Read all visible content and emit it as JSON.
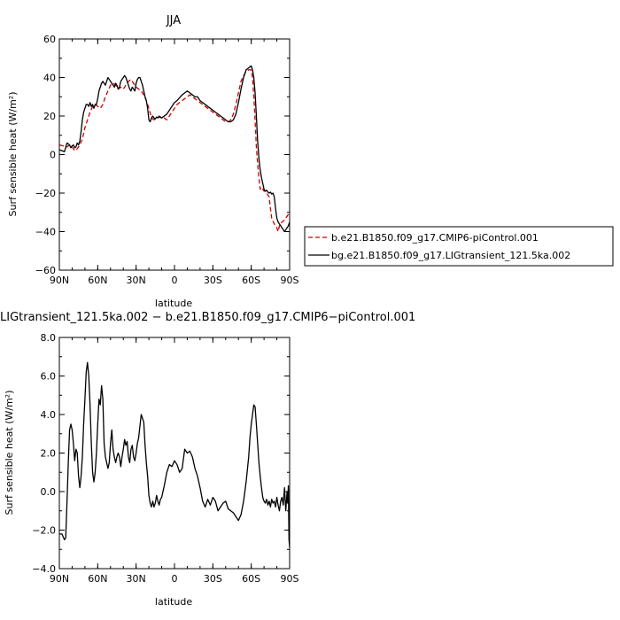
{
  "chart_data": [
    {
      "type": "line",
      "title": "JJA",
      "xlabel": "latitude",
      "ylabel": "Surf sensible heat (W/m²)",
      "x_dir": "90N to 90S",
      "xlim": [
        90,
        -90
      ],
      "ylim": [
        -60,
        60
      ],
      "x_ticks": [
        90,
        60,
        30,
        0,
        -30,
        -60,
        -90
      ],
      "x_tick_labels": [
        "90N",
        "60N",
        "30N",
        "0",
        "30S",
        "60S",
        "90S"
      ],
      "y_ticks": [
        -60,
        -40,
        -20,
        0,
        20,
        40,
        60
      ],
      "y_tick_labels": [
        "−60",
        "−40",
        "−20",
        "0",
        "20",
        "40",
        "60"
      ],
      "legend_position": "right-bottom-outside",
      "series": [
        {
          "name": "b.e21.B1850.f09_g17.CMIP6-piControl.001",
          "color": "#cc0000",
          "dash": "dashed",
          "x": [
            90,
            87,
            84,
            83,
            81,
            80,
            78,
            76,
            74,
            72,
            70,
            68,
            66,
            64,
            62,
            60,
            58,
            56,
            54,
            52,
            50,
            48,
            46,
            44,
            42,
            40,
            38,
            36,
            34,
            32,
            30,
            28,
            26,
            24,
            22,
            20,
            18,
            16,
            14,
            12,
            10,
            8,
            6,
            4,
            2,
            0,
            -2,
            -4,
            -6,
            -8,
            -10,
            -12,
            -14,
            -16,
            -18,
            -20,
            -22,
            -24,
            -26,
            -28,
            -30,
            -32,
            -34,
            -36,
            -38,
            -40,
            -42,
            -44,
            -46,
            -48,
            -50,
            -52,
            -54,
            -56,
            -58,
            -60,
            -61,
            -62,
            -63,
            -64,
            -65,
            -66,
            -67,
            -68,
            -69,
            -70,
            -71,
            -72,
            -73,
            -74,
            -75,
            -76,
            -78,
            -80,
            -81,
            -82,
            -84,
            -86,
            -88,
            -90
          ],
          "y": [
            5,
            4.5,
            4,
            4.5,
            5,
            4,
            2,
            3,
            5,
            8,
            14,
            18,
            22,
            25,
            26,
            25,
            24,
            26,
            30,
            33,
            36,
            37,
            36,
            34,
            35,
            34,
            36,
            38,
            39,
            37,
            35,
            34,
            33,
            31,
            28,
            24,
            19,
            18,
            19,
            19.5,
            19,
            19,
            18,
            20,
            22,
            24,
            26,
            27,
            28,
            29,
            30,
            31,
            30,
            29,
            28,
            27,
            26,
            25,
            24,
            23,
            22,
            21,
            20,
            19,
            18,
            17,
            17,
            18,
            21,
            26,
            32,
            38,
            41,
            43,
            44,
            44,
            40,
            30,
            18,
            4,
            -5,
            -12,
            -18,
            -17,
            -18,
            -19,
            -19,
            -20,
            -21,
            -22,
            -28,
            -33,
            -36,
            -38,
            -40,
            -37,
            -35,
            -34,
            -32,
            -30
          ]
        },
        {
          "name": "bg.e21.B1850.f09_g17.LIGtransient_121.5ka.002",
          "color": "#000000",
          "dash": "solid",
          "x": [
            90,
            88,
            86,
            84,
            83,
            82,
            81,
            80,
            79,
            78,
            77,
            76,
            75,
            74,
            73,
            72,
            71,
            70,
            69,
            68,
            67,
            66,
            65,
            64,
            63,
            62,
            61,
            60,
            59,
            58,
            57,
            56,
            55,
            54,
            53,
            52,
            51,
            50,
            49,
            48,
            47,
            46,
            45,
            44,
            43,
            42,
            41,
            40,
            39,
            38,
            37,
            36,
            35,
            34,
            33,
            32,
            31,
            30,
            29,
            28,
            27,
            26,
            25,
            24,
            23,
            22,
            21,
            20,
            19,
            18,
            17,
            16,
            15,
            14,
            13,
            12,
            10,
            8,
            6,
            4,
            2,
            0,
            -2,
            -4,
            -6,
            -8,
            -10,
            -12,
            -14,
            -16,
            -18,
            -20,
            -22,
            -24,
            -26,
            -28,
            -30,
            -32,
            -34,
            -36,
            -38,
            -40,
            -42,
            -44,
            -46,
            -48,
            -50,
            -52,
            -54,
            -56,
            -58,
            -60,
            -61,
            -62,
            -63,
            -64,
            -65,
            -66,
            -67,
            -68,
            -69,
            -70,
            -71,
            -72,
            -73,
            -74,
            -75,
            -76,
            -77,
            -78,
            -79,
            -80,
            -81,
            -82,
            -83,
            -84,
            -85,
            -86,
            -87,
            -88,
            -89,
            -90
          ],
          "y": [
            2.5,
            2,
            1.5,
            6,
            5.5,
            5,
            3.5,
            4.5,
            5,
            3.5,
            4,
            6,
            5,
            7,
            12,
            18,
            22,
            24,
            26,
            26,
            25,
            27,
            25,
            26,
            24,
            26,
            26,
            29,
            33,
            35,
            37,
            38,
            37,
            36,
            38,
            40,
            39,
            38,
            37,
            36,
            35,
            37,
            36,
            34,
            35,
            38,
            39,
            40,
            41,
            40,
            38,
            36,
            34,
            33,
            35,
            34,
            33,
            37,
            39,
            40,
            40,
            38,
            36,
            33,
            30,
            28,
            24,
            18,
            17,
            19,
            20,
            19,
            18.5,
            19.5,
            19,
            20,
            19,
            20,
            21,
            23,
            25,
            27,
            28,
            29.5,
            31,
            32,
            33,
            32,
            31,
            30,
            30,
            28,
            27,
            26,
            25,
            24,
            23,
            22,
            21,
            20,
            19,
            18,
            17,
            17,
            18,
            21,
            27,
            34,
            40,
            44,
            45,
            46,
            44,
            40,
            32,
            20,
            7,
            -2,
            -8,
            -12,
            -15,
            -18,
            -19,
            -18.5,
            -19.5,
            -20,
            -19.5,
            -20.5,
            -20,
            -22,
            -28,
            -33,
            -35,
            -36,
            -37,
            -38,
            -39,
            -40,
            -39,
            -38,
            -37,
            -35
          ]
        }
      ]
    },
    {
      "type": "line",
      "title": "LIGtransient_121.5ka.002 − b.e21.B1850.f09_g17.CMIP6−piControl.001",
      "xlabel": "latitude",
      "ylabel": "Surf sensible heat (W/m²)",
      "x_dir": "90N to 90S",
      "xlim": [
        90,
        -90
      ],
      "ylim": [
        -4,
        8
      ],
      "x_ticks": [
        90,
        60,
        30,
        0,
        -30,
        -60,
        -90
      ],
      "x_tick_labels": [
        "90N",
        "60N",
        "30N",
        "0",
        "30S",
        "60S",
        "90S"
      ],
      "y_ticks": [
        -4,
        -2,
        0,
        2,
        4,
        6,
        8
      ],
      "y_tick_labels": [
        "−4.0",
        "−2.0",
        "0.0",
        "2.0",
        "4.0",
        "6.0",
        "8.0"
      ],
      "series": [
        {
          "color": "#000000",
          "dash": "solid",
          "x": [
            90,
            88,
            86,
            85,
            84,
            83,
            82,
            81,
            80,
            79,
            78,
            77,
            76,
            75,
            74,
            73,
            72,
            71,
            70,
            69,
            68,
            67,
            66,
            65,
            64,
            63,
            62,
            61,
            60,
            59,
            58,
            57,
            56,
            55,
            54,
            53,
            52,
            51,
            50,
            49,
            48,
            47,
            46,
            45,
            44,
            43,
            42,
            41,
            40,
            39,
            38,
            37,
            36,
            35,
            34,
            33,
            32,
            31,
            30,
            29,
            28,
            27,
            26,
            25,
            24,
            23,
            22,
            21,
            20,
            19,
            18,
            17,
            16,
            15,
            14,
            13,
            12,
            11,
            10,
            9,
            8,
            6,
            4,
            2,
            0,
            -2,
            -4,
            -6,
            -8,
            -10,
            -12,
            -14,
            -16,
            -18,
            -20,
            -22,
            -24,
            -26,
            -28,
            -30,
            -32,
            -34,
            -36,
            -38,
            -40,
            -42,
            -44,
            -46,
            -48,
            -50,
            -52,
            -54,
            -56,
            -58,
            -59,
            -60,
            -61,
            -62,
            -63,
            -64,
            -65,
            -66,
            -67,
            -68,
            -69,
            -70,
            -71,
            -72,
            -73,
            -74,
            -75,
            -76,
            -77,
            -78,
            -79,
            -80,
            -81,
            -82,
            -83,
            -84,
            -85,
            -86,
            -87,
            -88,
            -88.5,
            -89,
            -89.5,
            -90
          ],
          "y": [
            -2.2,
            -2.2,
            -2.5,
            -2.4,
            -0.5,
            1.5,
            3.2,
            3.5,
            3.2,
            2.5,
            1.6,
            2.2,
            2.0,
            0.8,
            0.2,
            0.8,
            1.8,
            3.5,
            4.8,
            6.2,
            6.7,
            6.0,
            4.5,
            2.5,
            1.0,
            0.5,
            1.0,
            2.0,
            3.5,
            4.8,
            4.5,
            5.5,
            4.8,
            2.5,
            1.8,
            1.5,
            1.2,
            1.5,
            2.5,
            3.2,
            2.2,
            1.8,
            1.5,
            1.8,
            2.0,
            1.8,
            1.3,
            1.8,
            2.2,
            2.7,
            2.4,
            2.6,
            1.8,
            1.5,
            2.2,
            2.4,
            1.8,
            1.6,
            2.0,
            2.5,
            2.8,
            3.4,
            4.0,
            3.8,
            3.6,
            2.4,
            1.5,
            0.8,
            -0.2,
            -0.6,
            -0.8,
            -0.5,
            -0.8,
            -0.6,
            -0.2,
            -0.5,
            -0.7,
            -0.4,
            -0.3,
            0.0,
            0.3,
            1.0,
            1.4,
            1.3,
            1.6,
            1.4,
            1.0,
            1.2,
            2.2,
            2.0,
            2.1,
            1.8,
            1.2,
            0.8,
            0.2,
            -0.5,
            -0.8,
            -0.4,
            -0.7,
            -0.3,
            -0.5,
            -1.0,
            -0.8,
            -0.6,
            -0.5,
            -0.9,
            -1.0,
            -1.1,
            -1.3,
            -1.5,
            -1.2,
            -0.5,
            0.5,
            1.8,
            2.8,
            3.5,
            4.0,
            4.5,
            4.4,
            3.5,
            2.5,
            1.5,
            0.8,
            0.2,
            -0.3,
            -0.5,
            -0.6,
            -0.4,
            -0.7,
            -0.5,
            -0.8,
            -0.4,
            -0.6,
            -0.5,
            -0.8,
            -0.3,
            -0.7,
            -1.0,
            -0.5,
            -0.3,
            -0.7,
            0.2,
            -1.0,
            0.0,
            -0.6,
            0.3,
            -2.5,
            -2.9
          ]
        }
      ]
    }
  ]
}
